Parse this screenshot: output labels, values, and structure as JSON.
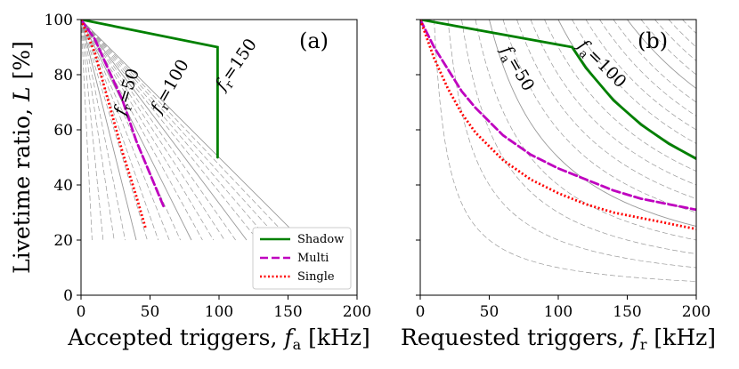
{
  "chart_data": [
    {
      "panel": "(a)",
      "type": "line",
      "xlabel": "Accepted triggers, f_a [kHz]",
      "ylabel": "Livetime ratio, L [%]",
      "xlim": [
        0,
        200
      ],
      "ylim": [
        0,
        100
      ],
      "xticks": [
        "0",
        "50",
        "100",
        "150",
        "200"
      ],
      "yticks": [
        "0",
        "20",
        "40",
        "60",
        "80",
        "100"
      ],
      "grid": false,
      "legend_placement": "bottom-right",
      "annotations": [
        {
          "label": "fr=50",
          "x": 38,
          "y": 80,
          "angle": -72
        },
        {
          "label": "fr=100",
          "x": 72,
          "y": 76,
          "angle": -60
        },
        {
          "label": "fr=150",
          "x": 115,
          "y": 82,
          "angle": -55
        }
      ],
      "series": [
        {
          "name": "Shadow",
          "color": "#008000",
          "dash": "solid",
          "points": [
            [
              0,
              100
            ],
            [
              99,
              90
            ],
            [
              99,
              90
            ],
            [
              99,
              50
            ]
          ]
        },
        {
          "name": "Multi",
          "color": "#bf00bf",
          "dash": "dashed",
          "points": [
            [
              0,
              100
            ],
            [
              10,
              92.9
            ],
            [
              20,
              81.7
            ],
            [
              30,
              70.8
            ],
            [
              40,
              56
            ],
            [
              50,
              44
            ],
            [
              60,
              32
            ]
          ]
        },
        {
          "name": "Single",
          "color": "#ff0000",
          "dash": "dotted",
          "points": [
            [
              0,
              100
            ],
            [
              10,
              88
            ],
            [
              20,
              70
            ],
            [
              30,
              52
            ],
            [
              40,
              36
            ],
            [
              47,
              24
            ]
          ]
        }
      ]
    },
    {
      "panel": "(b)",
      "type": "line",
      "xlabel": "Requested triggers, f_r [kHz]",
      "ylabel": "",
      "xlim": [
        0,
        200
      ],
      "ylim": [
        0,
        100
      ],
      "xticks": [
        "0",
        "50",
        "100",
        "150",
        "200"
      ],
      "yticks": [],
      "grid": false,
      "annotations": [
        {
          "label": "fa=50",
          "x": 65,
          "y": 78,
          "angle": 60
        },
        {
          "label": "fa=100",
          "x": 128,
          "y": 76,
          "angle": 45
        }
      ],
      "series": [
        {
          "name": "Shadow",
          "color": "#008000",
          "dash": "solid",
          "points": [
            [
              0,
              100
            ],
            [
              110,
              90
            ],
            [
              120,
              82.5
            ],
            [
              140,
              70.7
            ],
            [
              160,
              61.9
            ],
            [
              180,
              55
            ],
            [
              200,
              49.5
            ]
          ]
        },
        {
          "name": "Multi",
          "color": "#bf00bf",
          "dash": "dashed",
          "points": [
            [
              0,
              100
            ],
            [
              10,
              90
            ],
            [
              20,
              82
            ],
            [
              30,
              74
            ],
            [
              40,
              68
            ],
            [
              50,
              63
            ],
            [
              60,
              58
            ],
            [
              80,
              51
            ],
            [
              100,
              46
            ],
            [
              120,
              42
            ],
            [
              140,
              38
            ],
            [
              160,
              35
            ],
            [
              180,
              33
            ],
            [
              200,
              31
            ]
          ]
        },
        {
          "name": "Single",
          "color": "#ff0000",
          "dash": "dotted",
          "points": [
            [
              0,
              100
            ],
            [
              10,
              86
            ],
            [
              20,
              75
            ],
            [
              30,
              66
            ],
            [
              40,
              59
            ],
            [
              50,
              54
            ],
            [
              60,
              49
            ],
            [
              80,
              42
            ],
            [
              100,
              37
            ],
            [
              120,
              33
            ],
            [
              140,
              30
            ],
            [
              160,
              28
            ],
            [
              180,
              26
            ],
            [
              200,
              24
            ]
          ]
        }
      ]
    }
  ],
  "guides": {
    "count": 20,
    "step": 10,
    "color": "#999999"
  },
  "legend": {
    "items": [
      "Shadow",
      "Multi",
      "Single"
    ]
  },
  "sym": {
    "fr_var": "f",
    "fr_sub": "r",
    "fa_var": "f",
    "fa_sub": "a",
    "eq50": "=50",
    "eq100": "=100",
    "eq150": "=150",
    "ylab_pre": "Livetime ratio, ",
    "ylab_L": "L",
    "ylab_post": " [%]",
    "xa_pre": "Accepted triggers, ",
    "xa_post": " [kHz]",
    "xb_pre": "Requested triggers, ",
    "xb_post": " [kHz]"
  }
}
